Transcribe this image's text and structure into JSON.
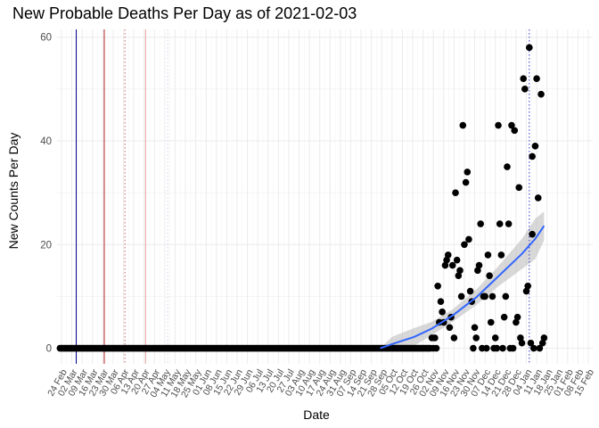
{
  "chart_data": {
    "type": "scatter",
    "title": "New Probable Deaths Per Day as of 2021-02-03",
    "xlabel": "Date",
    "ylabel": "New Counts Per Day",
    "xlim": [
      "2020-02-21",
      "2021-02-18"
    ],
    "ylim": [
      -3,
      61.5
    ],
    "y_ticks": [
      0,
      20,
      40,
      60
    ],
    "x_ticks": [
      {
        "date": "2020-02-24",
        "label": "24 Feb"
      },
      {
        "date": "2020-03-02",
        "label": "02 Mar"
      },
      {
        "date": "2020-03-09",
        "label": "09 Mar"
      },
      {
        "date": "2020-03-16",
        "label": "16 Mar"
      },
      {
        "date": "2020-03-23",
        "label": "23 Mar"
      },
      {
        "date": "2020-03-30",
        "label": "30 Mar"
      },
      {
        "date": "2020-04-06",
        "label": "06 Apr"
      },
      {
        "date": "2020-04-13",
        "label": "13 Apr"
      },
      {
        "date": "2020-04-20",
        "label": "20 Apr"
      },
      {
        "date": "2020-04-27",
        "label": "27 Apr"
      },
      {
        "date": "2020-05-04",
        "label": "04 May"
      },
      {
        "date": "2020-05-11",
        "label": "11 May"
      },
      {
        "date": "2020-05-18",
        "label": "18 May"
      },
      {
        "date": "2020-05-25",
        "label": "25 May"
      },
      {
        "date": "2020-06-01",
        "label": "01 Jun"
      },
      {
        "date": "2020-06-08",
        "label": "08 Jun"
      },
      {
        "date": "2020-06-15",
        "label": "15 Jun"
      },
      {
        "date": "2020-06-22",
        "label": "22 Jun"
      },
      {
        "date": "2020-06-29",
        "label": "29 Jun"
      },
      {
        "date": "2020-07-06",
        "label": "06 Jul"
      },
      {
        "date": "2020-07-13",
        "label": "13 Jul"
      },
      {
        "date": "2020-07-20",
        "label": "20 Jul"
      },
      {
        "date": "2020-07-27",
        "label": "27 Jul"
      },
      {
        "date": "2020-08-03",
        "label": "03 Aug"
      },
      {
        "date": "2020-08-10",
        "label": "10 Aug"
      },
      {
        "date": "2020-08-17",
        "label": "17 Aug"
      },
      {
        "date": "2020-08-24",
        "label": "24 Aug"
      },
      {
        "date": "2020-08-31",
        "label": "31 Aug"
      },
      {
        "date": "2020-09-07",
        "label": "07 Sep"
      },
      {
        "date": "2020-09-14",
        "label": "14 Sep"
      },
      {
        "date": "2020-09-21",
        "label": "21 Sep"
      },
      {
        "date": "2020-09-28",
        "label": "28 Sep"
      },
      {
        "date": "2020-10-05",
        "label": "05 Oct"
      },
      {
        "date": "2020-10-12",
        "label": "12 Oct"
      },
      {
        "date": "2020-10-19",
        "label": "19 Oct"
      },
      {
        "date": "2020-10-26",
        "label": "26 Oct"
      },
      {
        "date": "2020-11-02",
        "label": "02 Nov"
      },
      {
        "date": "2020-11-09",
        "label": "09 Nov"
      },
      {
        "date": "2020-11-16",
        "label": "16 Nov"
      },
      {
        "date": "2020-11-23",
        "label": "23 Nov"
      },
      {
        "date": "2020-11-30",
        "label": "30 Nov"
      },
      {
        "date": "2020-12-07",
        "label": "07 Dec"
      },
      {
        "date": "2020-12-14",
        "label": "14 Dec"
      },
      {
        "date": "2020-12-21",
        "label": "21 Dec"
      },
      {
        "date": "2020-12-28",
        "label": "28 Dec"
      },
      {
        "date": "2021-01-04",
        "label": "04 Jan"
      },
      {
        "date": "2021-01-11",
        "label": "11 Jan"
      },
      {
        "date": "2021-01-18",
        "label": "18 Jan"
      },
      {
        "date": "2021-01-25",
        "label": "25 Jan"
      },
      {
        "date": "2021-02-01",
        "label": "01 Feb"
      },
      {
        "date": "2021-02-08",
        "label": "08 Feb"
      },
      {
        "date": "2021-02-15",
        "label": "15 Feb"
      }
    ],
    "zero_run": {
      "from": "2020-02-23",
      "to": "2020-10-31",
      "value": 0
    },
    "points": [
      {
        "x": "2020-11-01",
        "y": 2
      },
      {
        "x": "2020-11-02",
        "y": 0
      },
      {
        "x": "2020-11-03",
        "y": 2
      },
      {
        "x": "2020-11-04",
        "y": 0
      },
      {
        "x": "2020-11-05",
        "y": 12
      },
      {
        "x": "2020-11-06",
        "y": 5
      },
      {
        "x": "2020-11-07",
        "y": 9
      },
      {
        "x": "2020-11-08",
        "y": 7
      },
      {
        "x": "2020-11-09",
        "y": 5
      },
      {
        "x": "2020-11-10",
        "y": 16
      },
      {
        "x": "2020-11-11",
        "y": 17
      },
      {
        "x": "2020-11-12",
        "y": 18
      },
      {
        "x": "2020-11-13",
        "y": 4
      },
      {
        "x": "2020-11-14",
        "y": 6
      },
      {
        "x": "2020-11-15",
        "y": 16
      },
      {
        "x": "2020-11-16",
        "y": 2
      },
      {
        "x": "2020-11-17",
        "y": 30
      },
      {
        "x": "2020-11-18",
        "y": 17
      },
      {
        "x": "2020-11-19",
        "y": 14
      },
      {
        "x": "2020-11-20",
        "y": 15
      },
      {
        "x": "2020-11-21",
        "y": 10
      },
      {
        "x": "2020-11-22",
        "y": 43
      },
      {
        "x": "2020-11-23",
        "y": 20
      },
      {
        "x": "2020-11-24",
        "y": 32
      },
      {
        "x": "2020-11-25",
        "y": 34
      },
      {
        "x": "2020-11-26",
        "y": 21
      },
      {
        "x": "2020-11-27",
        "y": 11
      },
      {
        "x": "2020-11-28",
        "y": 9
      },
      {
        "x": "2020-11-29",
        "y": 0
      },
      {
        "x": "2020-11-30",
        "y": 4
      },
      {
        "x": "2020-12-01",
        "y": 2
      },
      {
        "x": "2020-12-02",
        "y": 15
      },
      {
        "x": "2020-12-03",
        "y": 16
      },
      {
        "x": "2020-12-04",
        "y": 24
      },
      {
        "x": "2020-12-05",
        "y": 0
      },
      {
        "x": "2020-12-06",
        "y": 10
      },
      {
        "x": "2020-12-07",
        "y": 10
      },
      {
        "x": "2020-12-08",
        "y": 0
      },
      {
        "x": "2020-12-09",
        "y": 18
      },
      {
        "x": "2020-12-10",
        "y": 14
      },
      {
        "x": "2020-12-11",
        "y": 5
      },
      {
        "x": "2020-12-12",
        "y": 10
      },
      {
        "x": "2020-12-13",
        "y": 0
      },
      {
        "x": "2020-12-14",
        "y": 2
      },
      {
        "x": "2020-12-15",
        "y": 0
      },
      {
        "x": "2020-12-16",
        "y": 43
      },
      {
        "x": "2020-12-17",
        "y": 24
      },
      {
        "x": "2020-12-18",
        "y": 18
      },
      {
        "x": "2020-12-19",
        "y": 0
      },
      {
        "x": "2020-12-20",
        "y": 6
      },
      {
        "x": "2020-12-21",
        "y": 10
      },
      {
        "x": "2020-12-22",
        "y": 35
      },
      {
        "x": "2020-12-23",
        "y": 24
      },
      {
        "x": "2020-12-24",
        "y": 0
      },
      {
        "x": "2020-12-25",
        "y": 43
      },
      {
        "x": "2020-12-26",
        "y": 0
      },
      {
        "x": "2020-12-27",
        "y": 42
      },
      {
        "x": "2020-12-28",
        "y": 5
      },
      {
        "x": "2020-12-29",
        "y": 6
      },
      {
        "x": "2020-12-30",
        "y": 31
      },
      {
        "x": "2020-12-31",
        "y": 2
      },
      {
        "x": "2021-01-01",
        "y": 1
      },
      {
        "x": "2021-01-02",
        "y": 52
      },
      {
        "x": "2021-01-03",
        "y": 50
      },
      {
        "x": "2021-01-04",
        "y": 11
      },
      {
        "x": "2021-01-05",
        "y": 12
      },
      {
        "x": "2021-01-06",
        "y": 58
      },
      {
        "x": "2021-01-07",
        "y": 1
      },
      {
        "x": "2021-01-08",
        "y": 37
      },
      {
        "x": "2021-01-09",
        "y": 0
      },
      {
        "x": "2021-01-10",
        "y": 39
      },
      {
        "x": "2021-01-11",
        "y": 52
      },
      {
        "x": "2021-01-12",
        "y": 29
      },
      {
        "x": "2021-01-13",
        "y": 0
      },
      {
        "x": "2021-01-14",
        "y": 49
      },
      {
        "x": "2021-01-15",
        "y": 1
      },
      {
        "x": "2021-01-16",
        "y": 2
      },
      {
        "x": "2021-01-08",
        "y": 22
      }
    ],
    "smooth": {
      "color": "#3366FF",
      "band_color": "#BEBEBE",
      "points": [
        {
          "x": "2020-09-27",
          "y": 0,
          "lo": 0,
          "hi": 0
        },
        {
          "x": "2020-10-05",
          "y": 0.8,
          "lo": -0.6,
          "hi": 2.2
        },
        {
          "x": "2020-10-20",
          "y": 2.2,
          "lo": 0.5,
          "hi": 3.9
        },
        {
          "x": "2020-11-01",
          "y": 3.8,
          "lo": 2.5,
          "hi": 5.1
        },
        {
          "x": "2020-11-15",
          "y": 6.3,
          "lo": 5.1,
          "hi": 7.5
        },
        {
          "x": "2020-12-01",
          "y": 9.8,
          "lo": 8.3,
          "hi": 11.3
        },
        {
          "x": "2020-12-15",
          "y": 13.6,
          "lo": 11.7,
          "hi": 15.5
        },
        {
          "x": "2021-01-01",
          "y": 18.2,
          "lo": 15.3,
          "hi": 21.1
        },
        {
          "x": "2021-01-10",
          "y": 21.1,
          "lo": 17.2,
          "hi": 25.0
        },
        {
          "x": "2021-01-16",
          "y": 23.6,
          "lo": 20.8,
          "hi": 26.4
        }
      ]
    },
    "reference_lines": [
      {
        "x": "2020-03-05",
        "color": "#00008B",
        "style": "solid"
      },
      {
        "x": "2020-03-24",
        "color": "#B22222",
        "style": "solid"
      },
      {
        "x": "2020-04-07",
        "color": "#CD5C5C",
        "style": "dotted"
      },
      {
        "x": "2020-04-21",
        "color": "#E8A0A0",
        "style": "solid"
      },
      {
        "x": "2020-05-06",
        "color": "#D8C8E8",
        "style": "dotted"
      },
      {
        "x": "2021-01-06",
        "color": "#3333CC",
        "style": "dotted"
      }
    ],
    "grid": true
  }
}
